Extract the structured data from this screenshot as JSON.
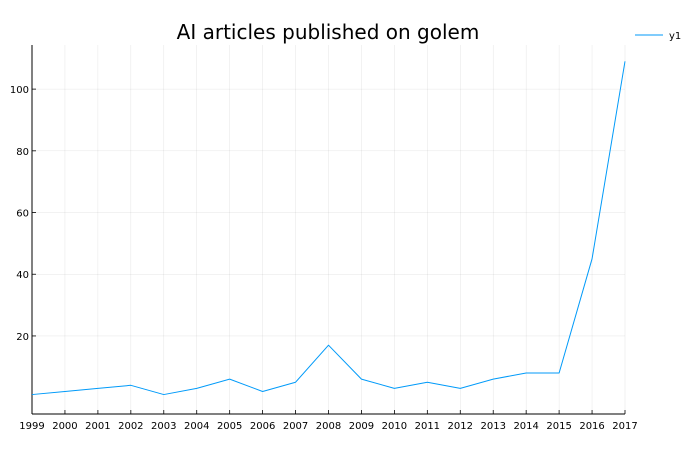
{
  "chart_data": {
    "type": "line",
    "title": "AI articles published on golem",
    "xlabel": "",
    "ylabel": "",
    "x": [
      1999,
      2000,
      2001,
      2002,
      2003,
      2004,
      2005,
      2006,
      2007,
      2008,
      2009,
      2010,
      2011,
      2012,
      2013,
      2014,
      2015,
      2016,
      2017
    ],
    "x_tick_labels": [
      "1999",
      "2000",
      "2001",
      "2002",
      "2003",
      "2004",
      "2005",
      "2006",
      "2007",
      "2008",
      "2009",
      "2010",
      "2011",
      "2012",
      "2013",
      "2014",
      "2015",
      "2016",
      "2017"
    ],
    "y_ticks": [
      20,
      40,
      60,
      80,
      100
    ],
    "y_tick_labels": [
      "20",
      "40",
      "60",
      "80",
      "100"
    ],
    "series": [
      {
        "name": "y1",
        "values": [
          1,
          2,
          3,
          4,
          1,
          3,
          6,
          2,
          5,
          17,
          6,
          3,
          5,
          3,
          6,
          8,
          8,
          45,
          109
        ],
        "color": "#009AF9"
      }
    ],
    "xlim": [
      1999,
      2017
    ],
    "ylim": [
      -5.3,
      114.3
    ],
    "grid": true,
    "legend": "top-right"
  }
}
